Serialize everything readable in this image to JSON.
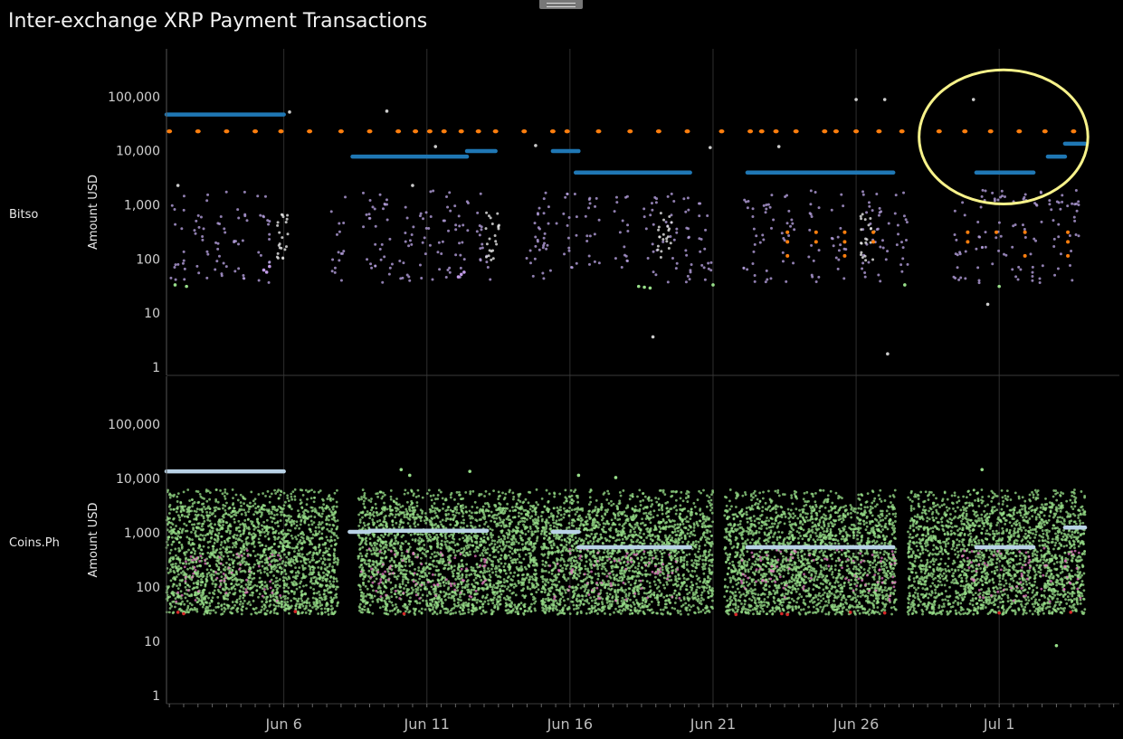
{
  "title": "Inter-exchange XRP Payment Transactions",
  "chart_data": {
    "type": "scatter",
    "title": "Inter-exchange XRP Payment Transactions",
    "ylabel": "Amount USD",
    "yscale": "log",
    "ylim": [
      1,
      500000
    ],
    "y_ticks": [
      "1",
      "10",
      "100",
      "1,000",
      "10,000",
      "100,000"
    ],
    "y_tick_values": [
      1,
      10,
      100,
      1000,
      10000,
      100000
    ],
    "x_ticks": [
      "Jun 6",
      "Jun 11",
      "Jun 16",
      "Jun 21",
      "Jun 26",
      "Jul 1"
    ],
    "x_tick_days": [
      6,
      11,
      16,
      21,
      26,
      31
    ],
    "xlim_days": [
      1.9,
      35.2
    ],
    "grid": true,
    "highlight_ellipse": {
      "color": "#f7f28a",
      "x_days": [
        28.2,
        34.1
      ],
      "y_values": [
        1000,
        300000
      ]
    },
    "panels": [
      {
        "name": "Bitso",
        "bands": [
          {
            "color": "#1f77b4",
            "segments": [
              [
                1.9,
                6.0,
                45000
              ],
              [
                8.4,
                12.4,
                7500
              ],
              [
                12.4,
                13.4,
                9500
              ],
              [
                15.4,
                16.3,
                9500
              ],
              [
                16.2,
                20.2,
                3800
              ],
              [
                22.2,
                27.3,
                3800
              ],
              [
                30.2,
                32.2,
                3800
              ],
              [
                32.7,
                33.3,
                7500
              ],
              [
                33.3,
                34.0,
                13000
              ]
            ]
          },
          {
            "color": "#ff7f0e",
            "value": 22000,
            "days": [
              2.0,
              3.0,
              4.0,
              5.0,
              5.9,
              6.9,
              8.0,
              9.0,
              10.0,
              10.6,
              11.1,
              11.6,
              12.2,
              12.8,
              13.4,
              14.4,
              15.4,
              15.9,
              17.0,
              18.1,
              19.1,
              20.1,
              21.3,
              22.3,
              22.7,
              23.2,
              23.9,
              24.9,
              25.3,
              26.0,
              26.8,
              27.6,
              28.9,
              29.8,
              30.7,
              31.7,
              32.6,
              33.6
            ],
            "extra": [
              [
                23.6,
                300
              ],
              [
                23.6,
                200
              ],
              [
                23.6,
                110
              ],
              [
                24.6,
                300
              ],
              [
                24.6,
                200
              ],
              [
                25.6,
                300
              ],
              [
                25.6,
                200
              ],
              [
                25.6,
                110
              ],
              [
                26.6,
                300
              ],
              [
                26.6,
                200
              ],
              [
                29.9,
                300
              ],
              [
                29.9,
                200
              ],
              [
                30.9,
                300
              ],
              [
                31.9,
                300
              ],
              [
                31.9,
                110
              ],
              [
                33.4,
                300
              ],
              [
                33.4,
                200
              ],
              [
                33.4,
                110
              ]
            ]
          }
        ],
        "clouds": [
          {
            "color": "#b39ddb",
            "columns": [
              2.3,
              3.1,
              3.8,
              4.5,
              5.3,
              7.9,
              9.0,
              9.6,
              10.3,
              11.0,
              11.6,
              12.2,
              13.0,
              14.7,
              15.3,
              16.0,
              16.8,
              17.8,
              18.8,
              19.5,
              20.2,
              20.7,
              22.3,
              22.9,
              23.6,
              24.5,
              25.4,
              26.4,
              26.9,
              27.6,
              29.6,
              30.3,
              31.0,
              31.7,
              32.3,
              33.0,
              33.6
            ],
            "ymin": 35,
            "ymax": 1800,
            "per": 16
          },
          {
            "color": "#e6e6e6",
            "columns": [
              5.9,
              13.3,
              19.3,
              26.4
            ],
            "ymin": 90,
            "ymax": 700,
            "per": 22
          },
          {
            "color": "#98df8a",
            "points": [
              [
                2.2,
                32
              ],
              [
                2.6,
                30
              ],
              [
                18.4,
                30
              ],
              [
                18.6,
                29
              ],
              [
                18.8,
                28
              ],
              [
                21.0,
                32
              ],
              [
                27.7,
                32
              ],
              [
                31.0,
                30
              ]
            ]
          },
          {
            "color": "#c29be8",
            "points": [
              [
                5.3,
                60
              ],
              [
                5.4,
                55
              ],
              [
                5.5,
                70
              ],
              [
                12.1,
                45
              ],
              [
                12.2,
                50
              ],
              [
                12.3,
                55
              ]
            ]
          },
          {
            "color": "#cccccc",
            "points": [
              [
                6.2,
                50000
              ],
              [
                9.6,
                52000
              ],
              [
                11.3,
                11500
              ],
              [
                14.8,
                12000
              ],
              [
                20.9,
                11000
              ],
              [
                23.3,
                11500
              ],
              [
                26.0,
                85000
              ],
              [
                27.0,
                85000
              ],
              [
                30.1,
                85000
              ],
              [
                18.9,
                3.5
              ],
              [
                27.1,
                1.7
              ],
              [
                30.6,
                14
              ],
              [
                2.3,
                2200
              ],
              [
                10.5,
                2200
              ]
            ]
          }
        ]
      },
      {
        "name": "Coins.Ph",
        "bands": [
          {
            "color": "#b9d2e6",
            "segments": [
              [
                1.9,
                6.0,
                13000
              ],
              [
                8.3,
                9.0,
                1000
              ],
              [
                9.0,
                13.1,
                1050
              ],
              [
                15.4,
                16.3,
                1000
              ],
              [
                16.3,
                20.2,
                520
              ],
              [
                22.2,
                27.3,
                520
              ],
              [
                30.2,
                32.2,
                520
              ],
              [
                33.3,
                34.0,
                1200
              ]
            ]
          }
        ],
        "clouds": [
          {
            "color": "#98df8a",
            "ranges": [
              [
                1.9,
                7.9
              ],
              [
                8.6,
                11.6
              ],
              [
                11.6,
                14.9
              ],
              [
                15.0,
                21.0
              ],
              [
                21.4,
                27.4
              ],
              [
                27.8,
                34.0
              ]
            ],
            "ymin": 30,
            "ymax": 6000,
            "density": 360
          },
          {
            "color": "#e377c2",
            "ranges": [
              [
                2.2,
                5.9
              ],
              [
                8.6,
                13.1
              ],
              [
                15.3,
                19.9
              ],
              [
                21.9,
                27.4
              ],
              [
                29.6,
                33.9
              ]
            ],
            "ymin": 50,
            "ymax": 500,
            "density": 16
          },
          {
            "color": "#d62728",
            "points": [
              [
                2.3,
                33
              ],
              [
                2.5,
                31
              ],
              [
                6.4,
                34
              ],
              [
                10.2,
                31
              ],
              [
                21.8,
                30
              ],
              [
                23.4,
                31
              ],
              [
                23.6,
                30
              ],
              [
                25.8,
                33
              ],
              [
                27.0,
                32
              ],
              [
                31.0,
                32
              ],
              [
                33.5,
                33
              ]
            ]
          },
          {
            "color": "#98df8a",
            "points": [
              [
                10.1,
                14000
              ],
              [
                10.4,
                11000
              ],
              [
                12.5,
                13000
              ],
              [
                16.3,
                11000
              ],
              [
                17.6,
                10000
              ],
              [
                30.4,
                14000
              ],
              [
                33.0,
                8
              ]
            ]
          }
        ]
      }
    ]
  }
}
